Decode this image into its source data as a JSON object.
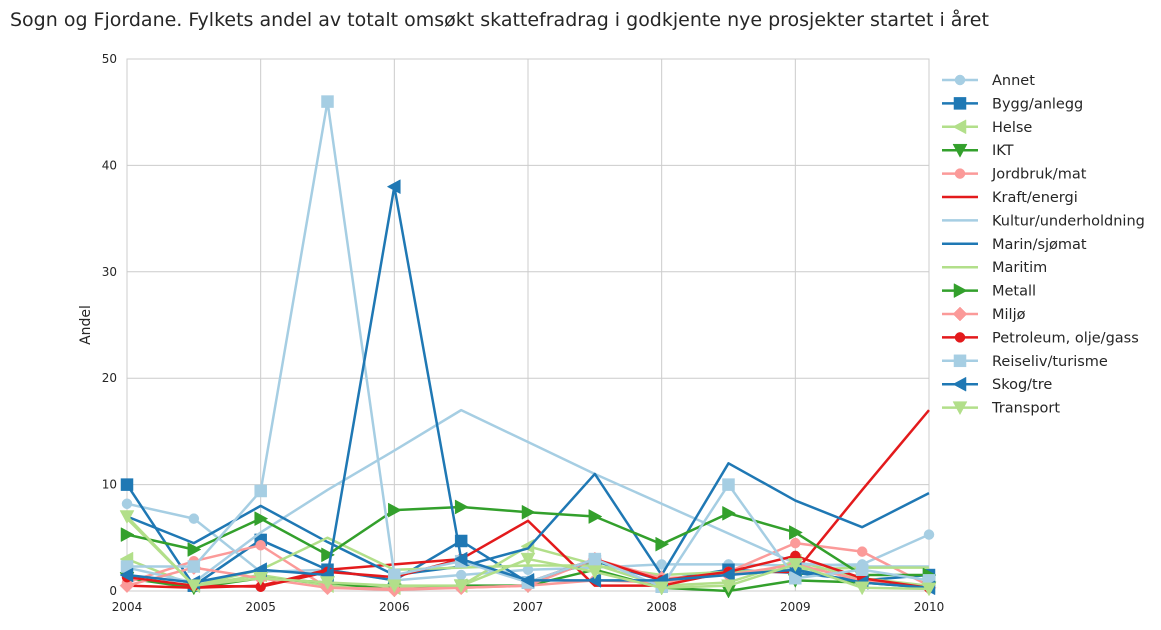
{
  "chart_data": {
    "type": "line",
    "title": "Sogn og Fjordane. Fylkets andel av totalt omsøkt skattefradrag i godkjente nye prosjekter startet i året",
    "xlabel": "",
    "ylabel": "Andel",
    "xlim": [
      2004,
      2010
    ],
    "ylim": [
      0,
      50
    ],
    "xticks": [
      2004,
      2005,
      2006,
      2007,
      2008,
      2009,
      2010
    ],
    "yticks": [
      0,
      10,
      20,
      30,
      40,
      50
    ],
    "grid": true,
    "legend_position": "right",
    "x": [
      2004,
      2004.5,
      2005,
      2005.5,
      2006,
      2006.5,
      2007,
      2007.5,
      2008,
      2008.5,
      2009,
      2009.5,
      2010
    ],
    "series": [
      {
        "name": "Annet",
        "color": "#a6cee3",
        "marker": "circle",
        "values": [
          8.2,
          6.8,
          1.8,
          2.0,
          1.0,
          1.5,
          2.0,
          2.2,
          2.5,
          2.5,
          2.4,
          2.5,
          5.3
        ]
      },
      {
        "name": "Bygg/anlegg",
        "color": "#1f78b4",
        "marker": "square",
        "values": [
          10.0,
          0.5,
          4.8,
          2.0,
          1.0,
          4.7,
          0.8,
          2.8,
          1.0,
          2.0,
          1.7,
          1.0,
          1.5
        ]
      },
      {
        "name": "Helse",
        "color": "#b2df8a",
        "marker": "triangle-left",
        "values": [
          3.0,
          0.5,
          1.5,
          0.5,
          0.3,
          0.5,
          4.2,
          2.5,
          0.5,
          0.8,
          2.8,
          1.2,
          0.5
        ]
      },
      {
        "name": "IKT",
        "color": "#33a02c",
        "marker": "triangle-down",
        "values": [
          1.2,
          0.3,
          1.2,
          0.8,
          0.1,
          0.5,
          0.5,
          2.0,
          0.3,
          0.0,
          1.0,
          0.8,
          0.3
        ]
      },
      {
        "name": "Jordbruk/mat",
        "color": "#fb9a99",
        "marker": "circle",
        "values": [
          0.8,
          2.8,
          4.3,
          0.3,
          0.2,
          0.3,
          0.5,
          1.0,
          0.8,
          1.8,
          4.5,
          3.7,
          0.5
        ]
      },
      {
        "name": "Kraft/energi",
        "color": "#e31a1c",
        "marker": "none",
        "values": [
          0.5,
          0.3,
          0.5,
          2.0,
          2.5,
          3.0,
          6.6,
          0.5,
          0.5,
          1.8,
          1.8,
          9.5,
          17.0
        ]
      },
      {
        "name": "Kultur/underholdning",
        "color": "#a6cee3",
        "marker": "none",
        "values": [
          2.2,
          0.8,
          5.5,
          9.5,
          13.2,
          17.0,
          14.0,
          11.0,
          8.2,
          5.4,
          2.6,
          2.3,
          2.3
        ]
      },
      {
        "name": "Marin/sjømat",
        "color": "#1f78b4",
        "marker": "none",
        "values": [
          7.0,
          4.5,
          8.0,
          4.6,
          1.5,
          2.3,
          4.0,
          11.0,
          1.5,
          12.0,
          8.5,
          6.0,
          9.2
        ]
      },
      {
        "name": "Maritim",
        "color": "#b2df8a",
        "marker": "none",
        "values": [
          6.8,
          0.5,
          2.0,
          5.0,
          2.0,
          2.2,
          2.4,
          2.4,
          1.5,
          1.8,
          2.0,
          2.2,
          2.2
        ]
      },
      {
        "name": "Metall",
        "color": "#33a02c",
        "marker": "triangle-right",
        "values": [
          5.3,
          3.9,
          6.8,
          3.4,
          7.6,
          7.9,
          7.4,
          7.0,
          4.4,
          7.3,
          5.5,
          1.5,
          1.5
        ]
      },
      {
        "name": "Miljø",
        "color": "#fb9a99",
        "marker": "diamond",
        "values": [
          0.5,
          2.2,
          1.2,
          0.3,
          0.1,
          0.3,
          0.5,
          3.0,
          1.2,
          1.5,
          2.5,
          1.0,
          0.3
        ]
      },
      {
        "name": "Petroleum, olje/gass",
        "color": "#e31a1c",
        "marker": "circle",
        "values": [
          1.3,
          0.5,
          0.4,
          1.8,
          1.3,
          3.0,
          0.8,
          3.0,
          1.0,
          1.8,
          3.3,
          1.2,
          0.3
        ]
      },
      {
        "name": "Reiseliv/turisme",
        "color": "#a6cee3",
        "marker": "square",
        "values": [
          2.3,
          2.3,
          9.4,
          46.0,
          1.5,
          2.8,
          0.8,
          3.0,
          0.4,
          10.0,
          1.2,
          2.0,
          1.0
        ]
      },
      {
        "name": "Skog/tre",
        "color": "#1f78b4",
        "marker": "triangle-left",
        "values": [
          1.5,
          0.8,
          2.0,
          1.5,
          38.0,
          3.0,
          1.0,
          1.0,
          1.0,
          1.5,
          2.0,
          0.8,
          0.3
        ]
      },
      {
        "name": "Transport",
        "color": "#b2df8a",
        "marker": "triangle-down",
        "values": [
          7.0,
          0.5,
          1.2,
          0.8,
          0.5,
          0.5,
          3.0,
          1.8,
          0.3,
          0.5,
          2.5,
          0.3,
          0.2
        ]
      }
    ]
  }
}
